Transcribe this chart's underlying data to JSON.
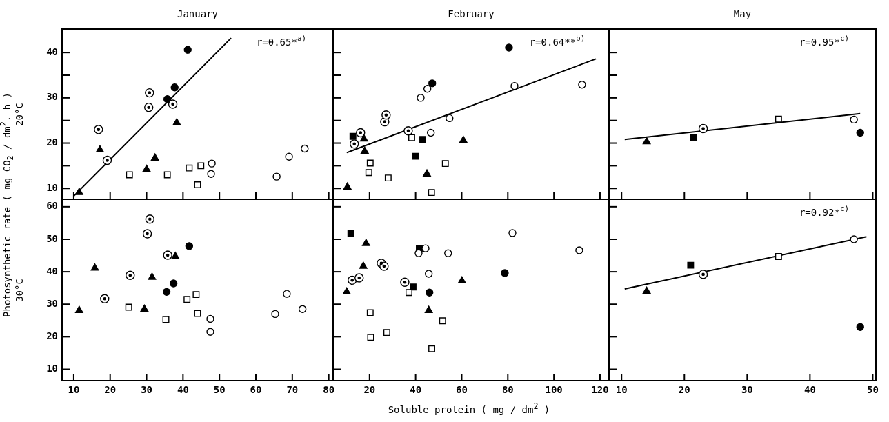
{
  "chart_data": [
    {
      "type": "scatter",
      "title": "January",
      "ylabel": "Photosynthetic rate ( mg CO$_{2}$ / dm$^{2}$. h )",
      "y2label": "20°C",
      "xlim": [
        6.8,
        81.2
      ],
      "ylim": [
        7.6,
        45.2
      ],
      "xticks": [
        10,
        20,
        30,
        40,
        50,
        60,
        70,
        80
      ],
      "yticks": [
        10,
        {
          "value": 15,
          "label": null
        },
        20,
        {
          "value": 25,
          "label": null
        },
        30,
        {
          "value": 35,
          "label": null
        },
        40
      ],
      "tick_labels": "y",
      "annotations": [
        "r=0.65*$^{a)}$"
      ],
      "series": [
        {
          "marker": "triangle",
          "color": "#000000",
          "x": [
            11.5,
            17.2,
            30.0,
            32.3,
            38.3
          ],
          "values": [
            9.1,
            18.5,
            14.2,
            16.7,
            24.5
          ]
        },
        {
          "marker": "circle",
          "color": "#ffffff",
          "colors": [
            "#000000",
            "#000000",
            "#000000",
            "#000000",
            "#000000"
          ],
          "x": [
            16.8,
            19.2,
            30.6,
            30.8,
            37.2
          ],
          "values": [
            23.0,
            16.2,
            27.9,
            31.1,
            28.6
          ]
        },
        {
          "marker": "circle",
          "color": "#000000",
          "x": [
            35.7,
            37.7,
            41.3
          ],
          "values": [
            29.7,
            32.3,
            40.6
          ]
        },
        {
          "marker": "circle",
          "color": "#ffffff",
          "x": [
            47.9,
            47.7,
            65.7,
            69.1,
            73.4
          ],
          "values": [
            15.5,
            13.2,
            12.6,
            17.0,
            18.8
          ]
        },
        {
          "marker": "square",
          "color": "#ffffff",
          "x": [
            25.3,
            35.7,
            41.7,
            44.9,
            44.0
          ],
          "values": [
            13.0,
            13.0,
            14.5,
            15.0,
            10.8
          ]
        },
        {
          "type": "line",
          "marker": "none",
          "color": "#000000",
          "x": [
            10,
            53.2
          ],
          "values": [
            8.3,
            43.2
          ]
        }
      ]
    },
    {
      "type": "scatter",
      "title": "February",
      "xlim": [
        4.2,
        123.9
      ],
      "ylim": [
        7.6,
        45.2
      ],
      "xticks": [
        20,
        40,
        60,
        80,
        100,
        120
      ],
      "yticks": [
        10,
        {
          "value": 15,
          "label": null
        },
        20,
        {
          "value": 25,
          "label": null
        },
        30,
        {
          "value": 35,
          "label": null
        },
        40
      ],
      "tick_labels": false,
      "annotations": [
        "r=0.64**$^{b)}$"
      ],
      "series": [
        {
          "marker": "triangle",
          "color": "#000000",
          "x": [
            10.4,
            17.6,
            17.9,
            44.9,
            60.7
          ],
          "values": [
            10.3,
            20.9,
            18.2,
            13.2,
            20.6
          ]
        },
        {
          "marker": "circle",
          "color": "#ffffff",
          "colors": [
            "#000000",
            "#000000",
            "#000000",
            "#000000",
            "#000000"
          ],
          "x": [
            13.4,
            16.1,
            26.6,
            27.2,
            36.8
          ],
          "values": [
            19.8,
            22.3,
            24.7,
            26.2,
            22.7
          ]
        },
        {
          "marker": "circle",
          "color": "#000000",
          "x": [
            47.2,
            80.5
          ],
          "values": [
            33.2,
            41.1
          ]
        },
        {
          "marker": "circle",
          "color": "#ffffff",
          "x": [
            42.2,
            45.1,
            46.6,
            54.7,
            82.9,
            112.2
          ],
          "values": [
            30.0,
            32.0,
            22.3,
            25.5,
            32.6,
            32.9
          ]
        },
        {
          "marker": "square",
          "color": "#ffffff",
          "x": [
            19.7,
            20.3,
            28.1,
            38.3,
            46.9,
            52.9
          ],
          "values": [
            13.5,
            15.6,
            12.3,
            21.2,
            9.1,
            15.5
          ]
        },
        {
          "marker": "square",
          "color": "#000000",
          "x": [
            12.8,
            40.1,
            43.1
          ],
          "values": [
            21.5,
            17.1,
            20.8
          ]
        },
        {
          "type": "line",
          "marker": "none",
          "color": "#000000",
          "x": [
            10.1,
            118.2
          ],
          "values": [
            17.9,
            38.6
          ]
        }
      ]
    },
    {
      "type": "scatter",
      "title": "May",
      "xlim": [
        8,
        50.5
      ],
      "ylim": [
        7.6,
        45.2
      ],
      "xticks": [
        10,
        20,
        30,
        40,
        50
      ],
      "yticks": [
        10,
        {
          "value": 15,
          "label": null
        },
        20,
        {
          "value": 25,
          "label": null
        },
        30,
        {
          "value": 35,
          "label": null
        },
        40
      ],
      "tick_labels": false,
      "annotations": [
        "r=0.95*$^{c)}$"
      ],
      "series": [
        {
          "marker": "triangle",
          "color": "#000000",
          "x": [
            14
          ],
          "values": [
            20.3
          ]
        },
        {
          "marker": "circle",
          "color": "#ffffff",
          "colors": [
            "#000000"
          ],
          "x": [
            23
          ],
          "values": [
            23.2
          ]
        },
        {
          "marker": "circle",
          "color": "#000000",
          "x": [
            48
          ],
          "values": [
            22.3
          ]
        },
        {
          "marker": "circle",
          "color": "#ffffff",
          "x": [
            47
          ],
          "values": [
            25.2
          ]
        },
        {
          "marker": "square",
          "color": "#ffffff",
          "x": [
            35
          ],
          "values": [
            25.3
          ]
        },
        {
          "marker": "square",
          "color": "#000000",
          "x": [
            21.5
          ],
          "values": [
            21.2
          ]
        },
        {
          "type": "line",
          "marker": "none",
          "color": "#000000",
          "x": [
            10.5,
            48
          ],
          "values": [
            20.8,
            26.5
          ]
        }
      ]
    },
    {
      "type": "scatter",
      "y2label": "30°C",
      "xlim": [
        6.8,
        81.2
      ],
      "ylim": [
        6.5,
        62.3
      ],
      "xticks": [
        10,
        20,
        30,
        40,
        50,
        60,
        70,
        80
      ],
      "yticks": [
        10,
        20,
        30,
        40,
        50,
        60
      ],
      "series": [
        {
          "marker": "triangle",
          "color": "#000000",
          "x": [
            11.5,
            15.8,
            29.4,
            31.5,
            37.9
          ],
          "values": [
            28.1,
            41.1,
            28.5,
            38.3,
            44.7
          ]
        },
        {
          "marker": "circle",
          "color": "#ffffff",
          "colors": [
            "#000000",
            "#000000",
            "#000000",
            "#000000",
            "#000000"
          ],
          "x": [
            18.5,
            25.5,
            30.2,
            30.9,
            35.8
          ],
          "values": [
            31.7,
            38.9,
            51.7,
            56.2,
            45.1
          ]
        },
        {
          "marker": "circle",
          "color": "#000000",
          "x": [
            35.5,
            37.4,
            41.7
          ],
          "values": [
            33.8,
            36.4,
            47.9
          ]
        },
        {
          "marker": "circle",
          "color": "#ffffff",
          "x": [
            47.5,
            47.5,
            65.3,
            68.5,
            72.8
          ],
          "values": [
            25.5,
            21.5,
            27.0,
            33.2,
            28.5
          ]
        },
        {
          "marker": "square",
          "color": "#ffffff",
          "x": [
            25.1,
            35.3,
            41.1,
            43.6,
            44.0
          ],
          "values": [
            29.1,
            25.3,
            31.5,
            33.0,
            27.2
          ]
        }
      ]
    },
    {
      "type": "scatter",
      "xlabel": "Soluble protein ( mg / dm$^{2}$ )",
      "xlim": [
        4.2,
        123.9
      ],
      "ylim": [
        6.5,
        62.3
      ],
      "xticks": [
        20,
        40,
        60,
        80,
        100,
        120
      ],
      "yticks": [
        10,
        20,
        30,
        40,
        50,
        60
      ],
      "tick_labels": "x",
      "series": [
        {
          "marker": "triangle",
          "color": "#000000",
          "x": [
            10.1,
            17.3,
            18.5,
            45.7,
            60.1
          ],
          "values": [
            33.8,
            41.7,
            48.7,
            28.1,
            37.2
          ]
        },
        {
          "marker": "circle",
          "color": "#ffffff",
          "colors": [
            "#000000",
            "#000000",
            "#000000",
            "#000000",
            "#000000"
          ],
          "x": [
            12.5,
            15.5,
            25.1,
            26.3,
            35.3
          ],
          "values": [
            37.4,
            38.1,
            42.6,
            41.7,
            36.8
          ]
        },
        {
          "marker": "circle",
          "color": "#000000",
          "x": [
            46.0,
            78.7
          ],
          "values": [
            33.6,
            39.6
          ]
        },
        {
          "marker": "circle",
          "color": "#ffffff",
          "x": [
            41.3,
            44.3,
            45.7,
            54.1,
            82.0,
            111.0
          ],
          "values": [
            45.7,
            47.2,
            39.4,
            45.7,
            51.9,
            46.6
          ]
        },
        {
          "marker": "square",
          "color": "#ffffff",
          "x": [
            20.3,
            20.5,
            27.5,
            37.1,
            47,
            51.7
          ],
          "values": [
            27.4,
            19.8,
            21.3,
            33.6,
            16.3,
            24.9
          ]
        },
        {
          "marker": "square",
          "color": "#000000",
          "x": [
            11.9,
            38.9,
            41.6
          ],
          "values": [
            51.9,
            35.3,
            47.2
          ]
        }
      ]
    },
    {
      "type": "scatter",
      "xlim": [
        8,
        50.5
      ],
      "ylim": [
        6.5,
        62.3
      ],
      "xticks": [
        10,
        20,
        30,
        40,
        50
      ],
      "yticks": [
        10,
        20,
        30,
        40,
        50,
        60
      ],
      "tick_labels": "x",
      "annotations": [
        "r=0.92*$^{c)}$"
      ],
      "series": [
        {
          "marker": "triangle",
          "color": "#000000",
          "x": [
            14
          ],
          "values": [
            34
          ]
        },
        {
          "marker": "circle",
          "color": "#ffffff",
          "colors": [
            "#000000"
          ],
          "x": [
            23
          ],
          "values": [
            39.2
          ]
        },
        {
          "marker": "circle",
          "color": "#000000",
          "x": [
            48
          ],
          "values": [
            23
          ]
        },
        {
          "marker": "circle",
          "color": "#ffffff",
          "x": [
            47
          ],
          "values": [
            50
          ]
        },
        {
          "marker": "square",
          "color": "#ffffff",
          "x": [
            35
          ],
          "values": [
            44.7
          ]
        },
        {
          "marker": "square",
          "color": "#000000",
          "x": [
            21
          ],
          "values": [
            42
          ]
        },
        {
          "type": "line",
          "marker": "none",
          "color": "#000000",
          "x": [
            10.5,
            49
          ],
          "values": [
            34.7,
            50.8
          ]
        }
      ]
    }
  ]
}
